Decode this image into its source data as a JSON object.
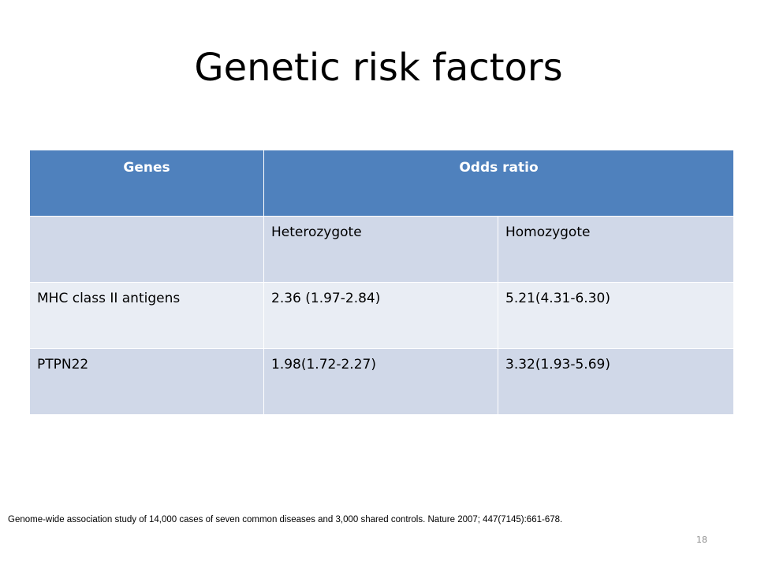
{
  "slide": {
    "title": "Genetic risk factors",
    "page_number": "18",
    "citation": "Genome-wide association study of 14,000 cases of seven common diseases and 3,000 shared controls. Nature 2007; 447(7145):661-678."
  },
  "table": {
    "header": {
      "genes": "Genes",
      "odds_ratio": "Odds ratio"
    },
    "subheader": {
      "genes": "",
      "heterozygote": "Heterozygote",
      "homozygote": "Homozygote"
    },
    "rows": [
      {
        "gene": "MHC class II antigens",
        "heterozygote": "2.36 (1.97-2.84)",
        "homozygote": "5.21(4.31-6.30)"
      },
      {
        "gene": "PTPN22",
        "heterozygote": "1.98(1.72-2.27)",
        "homozygote": "3.32(1.93-5.69)"
      }
    ]
  },
  "colors": {
    "header_bg": "#4f81bd",
    "band_dark": "#d0d8e8",
    "band_light": "#e9edf4",
    "page_number": "#8c8c8c"
  }
}
